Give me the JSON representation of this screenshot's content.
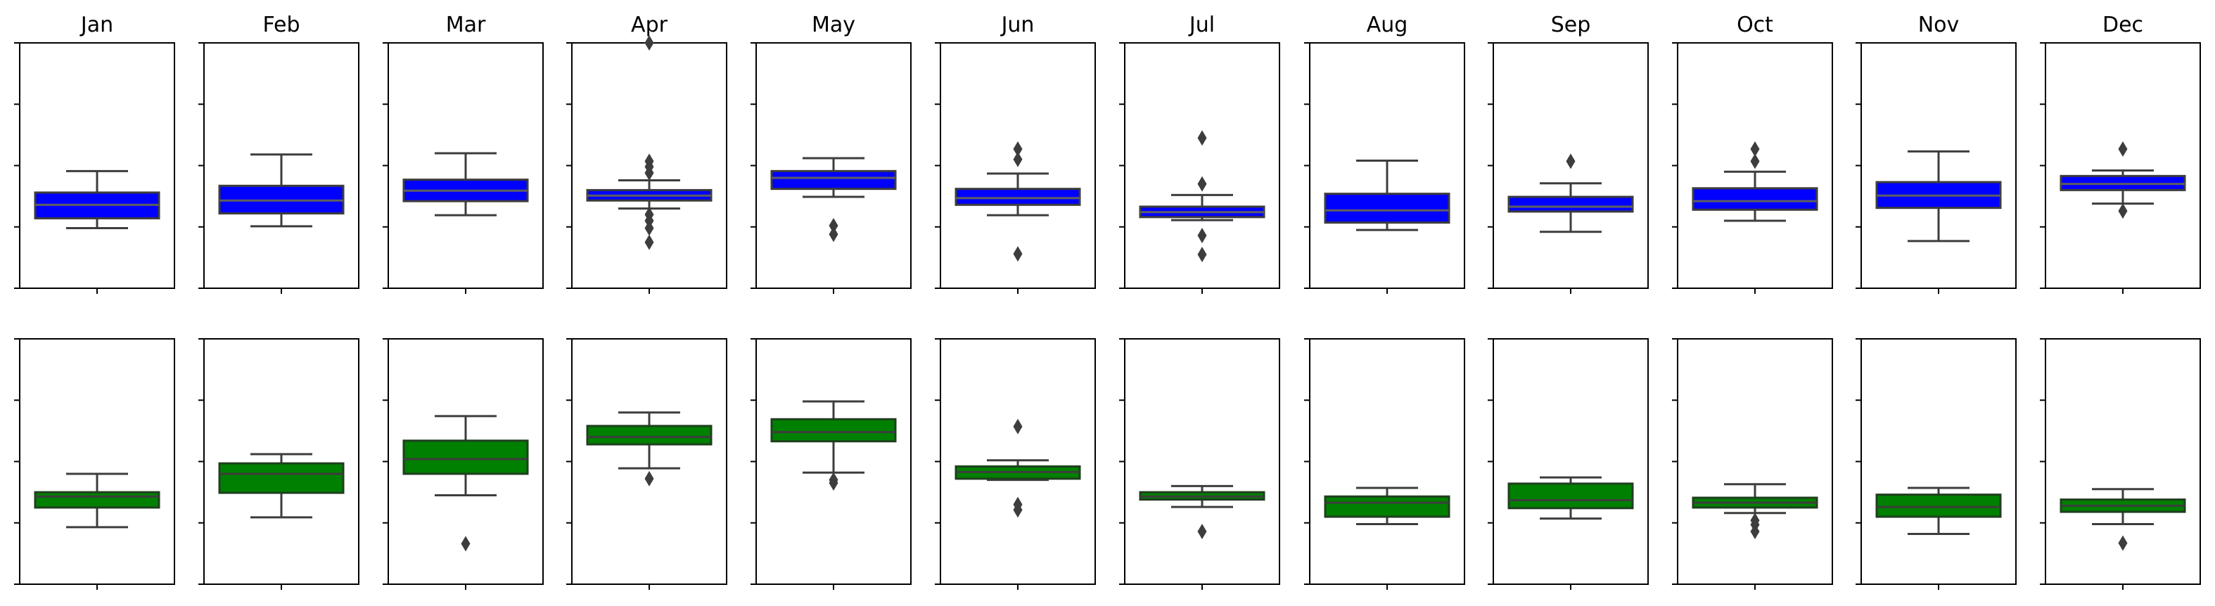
{
  "chart_data": {
    "type": "box",
    "months": [
      "Jan",
      "Feb",
      "Mar",
      "Apr",
      "May",
      "Jun",
      "Jul",
      "Aug",
      "Sep",
      "Oct",
      "Nov",
      "Dec"
    ],
    "y_ticks": [
      0,
      1,
      2,
      3,
      4
    ],
    "y_tick_labels_shown": false,
    "ylim": [
      0,
      4
    ],
    "grid": false,
    "rows": [
      {
        "row": 1,
        "box_color": "#0000ff",
        "boxes": [
          {
            "month": "Jan",
            "whislo": 0.98,
            "q1": 1.14,
            "med": 1.36,
            "q3": 1.56,
            "whishi": 1.91,
            "fliers": []
          },
          {
            "month": "Feb",
            "whislo": 1.01,
            "q1": 1.22,
            "med": 1.43,
            "q3": 1.67,
            "whishi": 2.18,
            "fliers": []
          },
          {
            "month": "Mar",
            "whislo": 1.19,
            "q1": 1.42,
            "med": 1.59,
            "q3": 1.77,
            "whishi": 2.2,
            "fliers": []
          },
          {
            "month": "Apr",
            "whislo": 1.3,
            "q1": 1.43,
            "med": 1.51,
            "q3": 1.6,
            "whishi": 1.76,
            "fliers": [
              0.75,
              0.98,
              1.1,
              1.2,
              1.88,
              1.98,
              2.07,
              4.0
            ]
          },
          {
            "month": "May",
            "whislo": 1.49,
            "q1": 1.62,
            "med": 1.8,
            "q3": 1.91,
            "whishi": 2.12,
            "fliers": [
              0.88,
              1.02
            ]
          },
          {
            "month": "Jun",
            "whislo": 1.19,
            "q1": 1.36,
            "med": 1.47,
            "q3": 1.62,
            "whishi": 1.87,
            "fliers": [
              0.56,
              2.1,
              2.27
            ]
          },
          {
            "month": "Jul",
            "whislo": 1.11,
            "q1": 1.16,
            "med": 1.24,
            "q3": 1.33,
            "whishi": 1.52,
            "fliers": [
              0.55,
              0.86,
              1.7,
              2.45
            ]
          },
          {
            "month": "Aug",
            "whislo": 0.95,
            "q1": 1.07,
            "med": 1.27,
            "q3": 1.54,
            "whishi": 2.08,
            "fliers": []
          },
          {
            "month": "Sep",
            "whislo": 0.92,
            "q1": 1.25,
            "med": 1.33,
            "q3": 1.49,
            "whishi": 1.71,
            "fliers": [
              2.07
            ]
          },
          {
            "month": "Oct",
            "whislo": 1.1,
            "q1": 1.28,
            "med": 1.42,
            "q3": 1.63,
            "whishi": 1.9,
            "fliers": [
              2.07,
              2.27
            ]
          },
          {
            "month": "Nov",
            "whislo": 0.77,
            "q1": 1.31,
            "med": 1.51,
            "q3": 1.73,
            "whishi": 2.23,
            "fliers": []
          },
          {
            "month": "Dec",
            "whislo": 1.38,
            "q1": 1.6,
            "med": 1.7,
            "q3": 1.83,
            "whishi": 1.92,
            "fliers": [
              1.26,
              2.27
            ]
          }
        ]
      },
      {
        "row": 2,
        "box_color": "#008000",
        "boxes": [
          {
            "month": "Jan",
            "whislo": 0.93,
            "q1": 1.25,
            "med": 1.43,
            "q3": 1.5,
            "whishi": 1.8,
            "fliers": []
          },
          {
            "month": "Feb",
            "whislo": 1.09,
            "q1": 1.49,
            "med": 1.8,
            "q3": 1.97,
            "whishi": 2.12,
            "fliers": []
          },
          {
            "month": "Mar",
            "whislo": 1.45,
            "q1": 1.8,
            "med": 2.04,
            "q3": 2.34,
            "whishi": 2.74,
            "fliers": [
              0.66
            ]
          },
          {
            "month": "Apr",
            "whislo": 1.89,
            "q1": 2.28,
            "med": 2.4,
            "q3": 2.58,
            "whishi": 2.8,
            "fliers": [
              1.72
            ]
          },
          {
            "month": "May",
            "whislo": 1.82,
            "q1": 2.33,
            "med": 2.48,
            "q3": 2.69,
            "whishi": 2.98,
            "fliers": [
              1.65,
              1.7
            ]
          },
          {
            "month": "Jun",
            "whislo": 1.7,
            "q1": 1.72,
            "med": 1.83,
            "q3": 1.92,
            "whishi": 2.02,
            "fliers": [
              1.21,
              1.3,
              2.57
            ]
          },
          {
            "month": "Jul",
            "whislo": 1.26,
            "q1": 1.38,
            "med": 1.43,
            "q3": 1.5,
            "whishi": 1.6,
            "fliers": [
              0.86
            ]
          },
          {
            "month": "Aug",
            "whislo": 0.98,
            "q1": 1.1,
            "med": 1.33,
            "q3": 1.43,
            "whishi": 1.57,
            "fliers": []
          },
          {
            "month": "Sep",
            "whislo": 1.07,
            "q1": 1.24,
            "med": 1.37,
            "q3": 1.64,
            "whishi": 1.74,
            "fliers": []
          },
          {
            "month": "Oct",
            "whislo": 1.16,
            "q1": 1.25,
            "med": 1.33,
            "q3": 1.41,
            "whishi": 1.63,
            "fliers": [
              0.86,
              0.97,
              1.04
            ]
          },
          {
            "month": "Nov",
            "whislo": 0.82,
            "q1": 1.1,
            "med": 1.26,
            "q3": 1.46,
            "whishi": 1.57,
            "fliers": []
          },
          {
            "month": "Dec",
            "whislo": 0.98,
            "q1": 1.18,
            "med": 1.28,
            "q3": 1.38,
            "whishi": 1.55,
            "fliers": [
              0.67
            ]
          }
        ]
      }
    ]
  }
}
